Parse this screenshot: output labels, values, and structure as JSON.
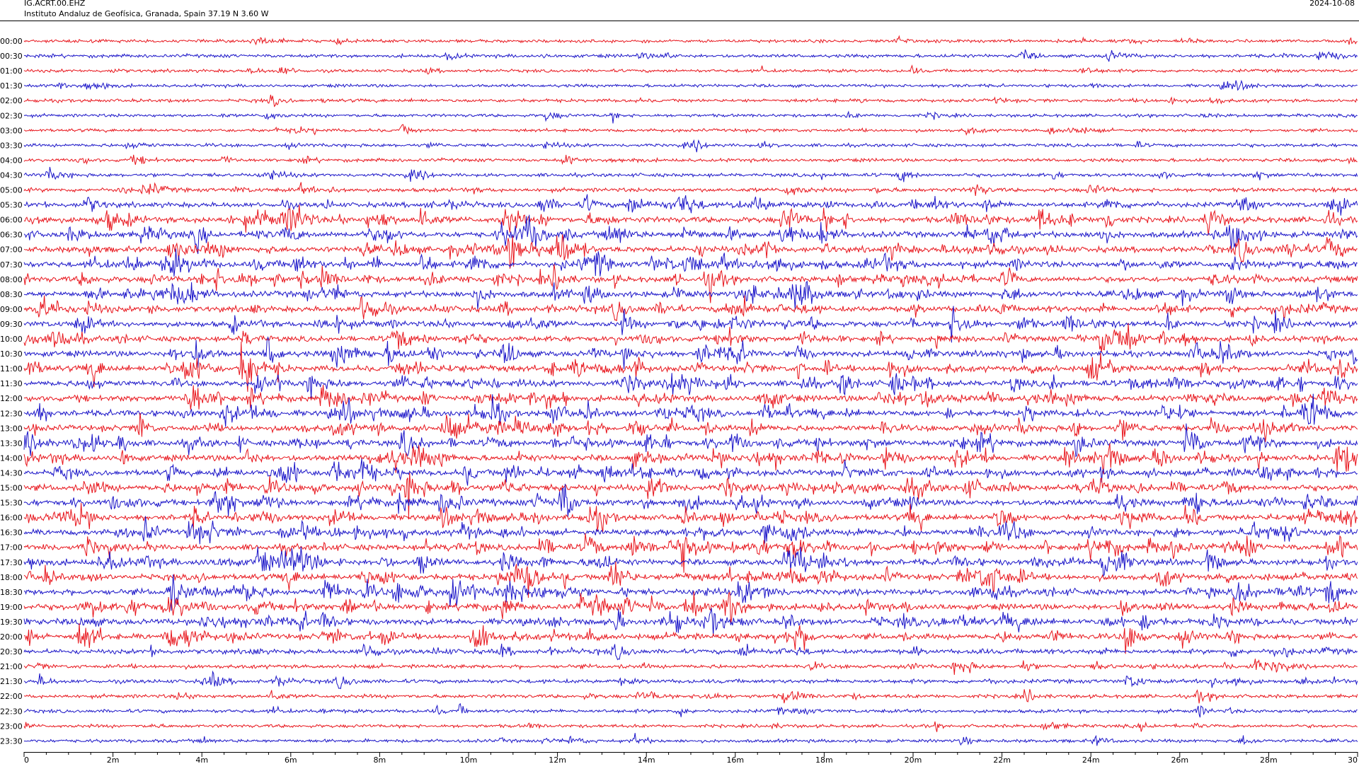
{
  "header": {
    "station": "IG.ACRT.00.EHZ",
    "subtitle": "Instituto Andaluz de Geofísica, Granada, Spain  37.19 N 3.60 W",
    "date": "2024-10-08"
  },
  "chart_data": {
    "type": "line",
    "title": "IG.ACRT.00.EHZ",
    "row_labels": [
      "00:00",
      "00:30",
      "01:00",
      "01:30",
      "02:00",
      "02:30",
      "03:00",
      "03:30",
      "04:00",
      "04:30",
      "05:00",
      "05:30",
      "06:00",
      "06:30",
      "07:00",
      "07:30",
      "08:00",
      "08:30",
      "09:00",
      "09:30",
      "10:00",
      "10:30",
      "11:00",
      "11:30",
      "12:00",
      "12:30",
      "13:00",
      "13:30",
      "14:00",
      "14:30",
      "15:00",
      "15:30",
      "16:00",
      "16:30",
      "17:00",
      "17:30",
      "18:00",
      "18:30",
      "19:00",
      "19:30",
      "20:00",
      "20:30",
      "21:00",
      "21:30",
      "22:00",
      "22:30",
      "23:00",
      "23:30"
    ],
    "x_tick_labels": [
      "0",
      "2m",
      "4m",
      "6m",
      "8m",
      "10m",
      "12m",
      "14m",
      "16m",
      "18m",
      "20m",
      "22m",
      "24m",
      "26m",
      "28m",
      "30"
    ],
    "xlim": [
      0,
      30
    ],
    "colors": [
      "#e8141b",
      "#1a14c8"
    ],
    "row_activity": [
      0.35,
      0.4,
      0.35,
      0.35,
      0.4,
      0.35,
      0.35,
      0.4,
      0.4,
      0.45,
      0.55,
      0.8,
      1.0,
      1.0,
      1.0,
      1.0,
      0.95,
      1.0,
      0.95,
      0.95,
      0.9,
      0.95,
      1.0,
      1.0,
      1.0,
      1.0,
      1.0,
      1.0,
      1.0,
      1.0,
      1.0,
      1.0,
      1.0,
      1.0,
      1.0,
      1.0,
      1.0,
      1.0,
      1.0,
      1.0,
      0.95,
      0.7,
      0.55,
      0.55,
      0.5,
      0.45,
      0.4,
      0.4
    ]
  }
}
